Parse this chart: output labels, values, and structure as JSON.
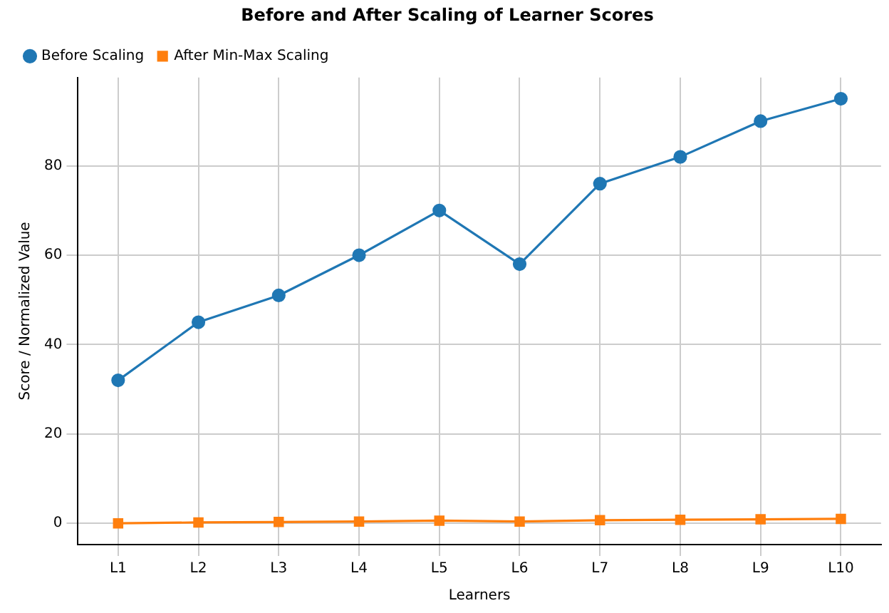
{
  "chart_data": {
    "type": "line",
    "title": "Before and After Scaling of Learner Scores",
    "xlabel": "Learners",
    "ylabel": "Score / Normalized Value",
    "categories": [
      "L1",
      "L2",
      "L3",
      "L4",
      "L5",
      "L6",
      "L7",
      "L8",
      "L9",
      "L10"
    ],
    "series": [
      {
        "name": "Before Scaling",
        "color": "#1f77b4",
        "marker": "circle",
        "values": [
          32,
          45,
          51,
          60,
          70,
          58,
          76,
          82,
          90,
          95
        ]
      },
      {
        "name": "After Min-Max Scaling",
        "color": "#ff7f0e",
        "marker": "square",
        "values": [
          0,
          0.2,
          0.3,
          0.4,
          0.6,
          0.4,
          0.7,
          0.8,
          0.9,
          1
        ]
      }
    ],
    "ylim": [
      -4.75,
      99.75
    ],
    "yticks": [
      0,
      20,
      40,
      60,
      80
    ],
    "grid": true,
    "legend": "top left"
  }
}
